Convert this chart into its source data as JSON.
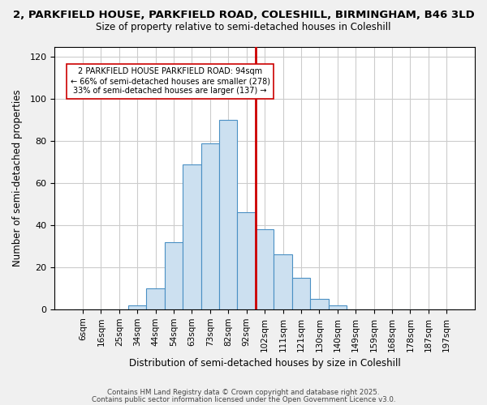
{
  "title_line1": "2, PARKFIELD HOUSE, PARKFIELD ROAD, COLESHILL, BIRMINGHAM, B46 3LD",
  "title_line2": "Size of property relative to semi-detached houses in Coleshill",
  "xlabel": "Distribution of semi-detached houses by size in Coleshill",
  "ylabel": "Number of semi-detached properties",
  "bar_labels": [
    "6sqm",
    "16sqm",
    "25sqm",
    "34sqm",
    "44sqm",
    "54sqm",
    "63sqm",
    "73sqm",
    "82sqm",
    "92sqm",
    "102sqm",
    "111sqm",
    "121sqm",
    "130sqm",
    "140sqm",
    "149sqm",
    "159sqm",
    "168sqm",
    "178sqm",
    "187sqm",
    "197sqm"
  ],
  "bar_values": [
    0,
    0,
    0,
    2,
    10,
    32,
    69,
    79,
    90,
    46,
    38,
    26,
    15,
    5,
    2,
    0,
    0,
    0,
    0,
    0,
    0
  ],
  "smaller_pct": 66,
  "smaller_count": 278,
  "larger_pct": 33,
  "larger_count": 137,
  "bar_color": "#cce0f0",
  "bar_edge_color": "#4a90c4",
  "line_color": "#cc0000",
  "annotation_text_line1": "2 PARKFIELD HOUSE PARKFIELD ROAD: 94sqm",
  "annotation_text_line2": "← 66% of semi-detached houses are smaller (278)",
  "annotation_text_line3": "33% of semi-detached houses are larger (137) →",
  "ylim": [
    0,
    125
  ],
  "yticks": [
    0,
    20,
    40,
    60,
    80,
    100,
    120
  ],
  "footnote_line1": "Contains HM Land Registry data © Crown copyright and database right 2025.",
  "footnote_line2": "Contains public sector information licensed under the Open Government Licence v3.0.",
  "background_color": "#f0f0f0",
  "plot_background_color": "#ffffff",
  "red_line_index": 9.5
}
